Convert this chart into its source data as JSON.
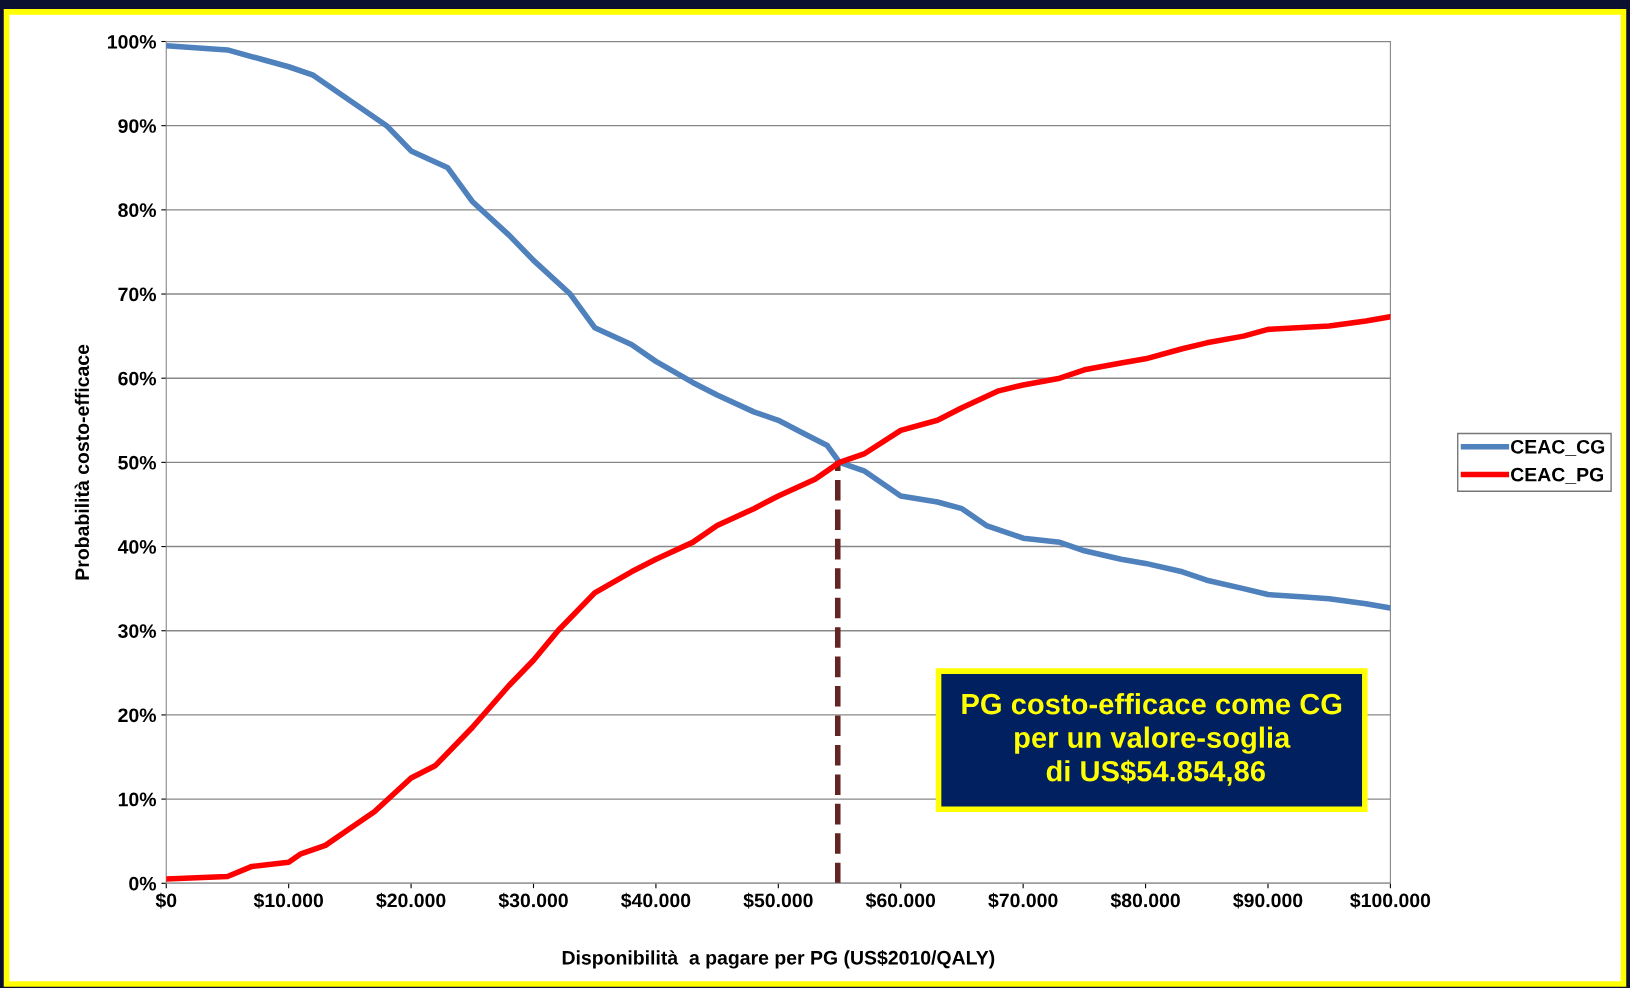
{
  "chart_data": {
    "type": "line",
    "xlabel": "Disponibilità  a pagare per PG (US$2010/QALY)",
    "ylabel": "Probabilità costo-efficace",
    "series": [
      {
        "name": "CEAC_CG",
        "color": "#4f81bd",
        "x": [
          0,
          5000,
          8000,
          10000,
          12000,
          15000,
          18000,
          20000,
          23000,
          25000,
          28000,
          30000,
          33000,
          35000,
          38000,
          40000,
          43000,
          45000,
          48000,
          50000,
          52000,
          54000,
          55000,
          57000,
          60000,
          63000,
          65000,
          67000,
          70000,
          73000,
          75000,
          78000,
          80000,
          83000,
          85000,
          88000,
          90000,
          93000,
          95000,
          98000,
          100000
        ],
        "values": [
          99.5,
          99,
          97.8,
          97,
          96,
          93,
          90,
          87,
          85,
          81,
          77,
          74,
          70,
          66,
          64,
          62,
          59.5,
          58,
          56,
          55,
          53.5,
          52,
          50,
          49,
          46,
          45.3,
          44.5,
          42.5,
          41,
          40.5,
          39.5,
          38.5,
          38,
          37,
          36,
          35,
          34.3,
          34,
          33.8,
          33.2,
          32.7
        ]
      },
      {
        "name": "CEAC_PG",
        "color": "#ff0000",
        "x": [
          0,
          5000,
          7000,
          10000,
          11000,
          13000,
          15000,
          17000,
          20000,
          22000,
          25000,
          28000,
          30000,
          32000,
          35000,
          38000,
          40000,
          43000,
          45000,
          48000,
          50000,
          53000,
          55000,
          57000,
          60000,
          63000,
          65000,
          68000,
          70000,
          73000,
          75000,
          78000,
          80000,
          83000,
          85000,
          88000,
          90000,
          95000,
          98000,
          100000
        ],
        "values": [
          0.5,
          0.8,
          2,
          2.5,
          3.5,
          4.5,
          6.5,
          8.5,
          12.5,
          14,
          18.5,
          23.5,
          26.5,
          30,
          34.5,
          37,
          38.5,
          40.5,
          42.5,
          44.5,
          46,
          48,
          50,
          51,
          53.8,
          55,
          56.5,
          58.5,
          59.2,
          60,
          61,
          61.8,
          62.3,
          63.5,
          64.2,
          65,
          65.8,
          66.2,
          66.8,
          67.3
        ]
      }
    ],
    "xlim": [
      0,
      100000
    ],
    "xticks": [
      {
        "value": 0,
        "label": "$0"
      },
      {
        "value": 10000,
        "label": "$10.000"
      },
      {
        "value": 20000,
        "label": "$20.000"
      },
      {
        "value": 30000,
        "label": "$30.000"
      },
      {
        "value": 40000,
        "label": "$40.000"
      },
      {
        "value": 50000,
        "label": "$50.000"
      },
      {
        "value": 60000,
        "label": "$60.000"
      },
      {
        "value": 70000,
        "label": "$70.000"
      },
      {
        "value": 80000,
        "label": "$80.000"
      },
      {
        "value": 90000,
        "label": "$90.000"
      },
      {
        "value": 100000,
        "label": "$100.000"
      }
    ],
    "ylim": [
      0,
      100
    ],
    "yticks": [
      {
        "value": 0,
        "label": "0%"
      },
      {
        "value": 10,
        "label": "10%"
      },
      {
        "value": 20,
        "label": "20%"
      },
      {
        "value": 30,
        "label": "30%"
      },
      {
        "value": 40,
        "label": "40%"
      },
      {
        "value": 50,
        "label": "50%"
      },
      {
        "value": 60,
        "label": "60%"
      },
      {
        "value": 70,
        "label": "70%"
      },
      {
        "value": 80,
        "label": "80%"
      },
      {
        "value": 90,
        "label": "90%"
      },
      {
        "value": 100,
        "label": "100%"
      }
    ],
    "ref_lines": [
      {
        "axis": "x",
        "value": 54854.86,
        "color": "#632523",
        "line_style": "dashed"
      }
    ],
    "annotations": [
      "PG costo-efficace come CG\nper un valore-soglia\n di US$54.854,86"
    ],
    "grid": "y",
    "legend": "right",
    "marker": "none",
    "line_style": "solid"
  }
}
